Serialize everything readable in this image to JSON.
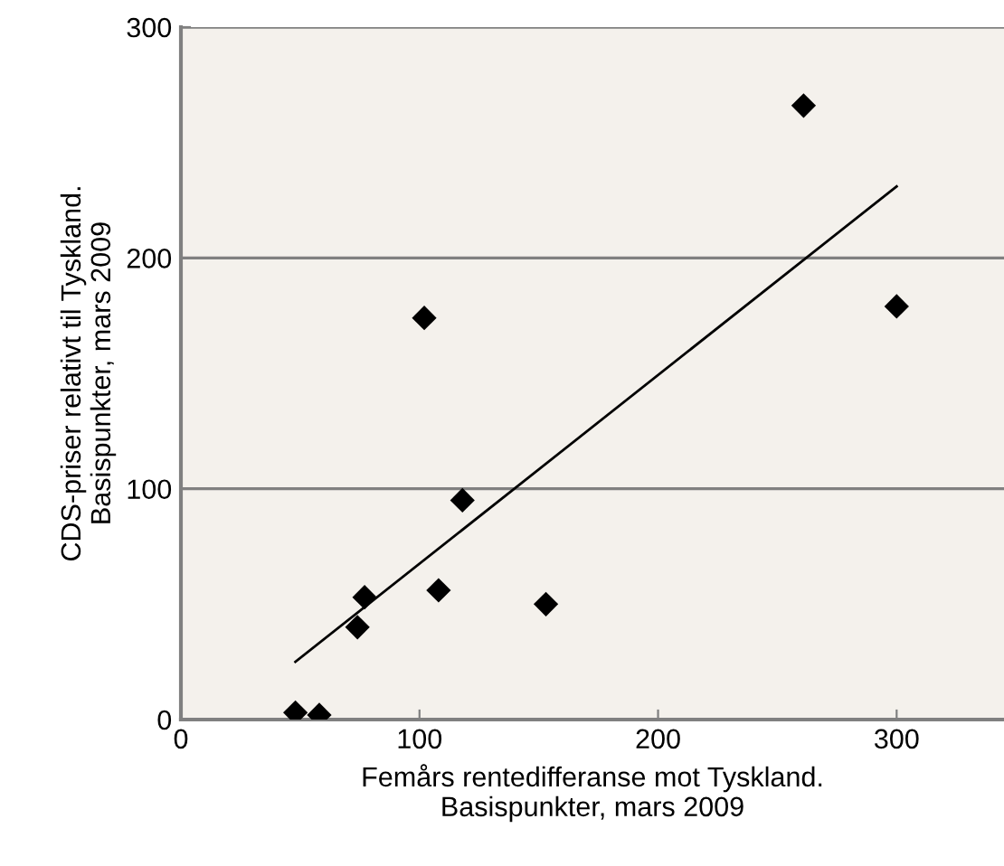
{
  "chart_data": {
    "type": "scatter",
    "xlabel": "Femårs rentedifferanse mot Tyskland.\nBasispunkter, mars 2009",
    "ylabel": "CDS-priser relativt til Tyskland.\nBasispunkter, mars 2009",
    "series": [
      {
        "color": "#000000",
        "marker": "diamond",
        "x": [
          48,
          58,
          74,
          77,
          102,
          108,
          118,
          153,
          261,
          300
        ],
        "values": [
          3,
          2,
          40,
          53,
          174,
          56,
          95,
          50,
          266,
          179
        ]
      },
      {
        "type": "line",
        "color": "#000000",
        "marker": "none",
        "line_style": "solid",
        "x": [
          48,
          300
        ],
        "values": [
          25,
          231
        ]
      }
    ],
    "xlim": [
      0,
      345
    ],
    "ylim": [
      0,
      300
    ],
    "xticks": [
      0,
      100,
      200,
      300
    ],
    "yticks": [
      0,
      100,
      200,
      300
    ],
    "grid": "y",
    "legend": false
  }
}
